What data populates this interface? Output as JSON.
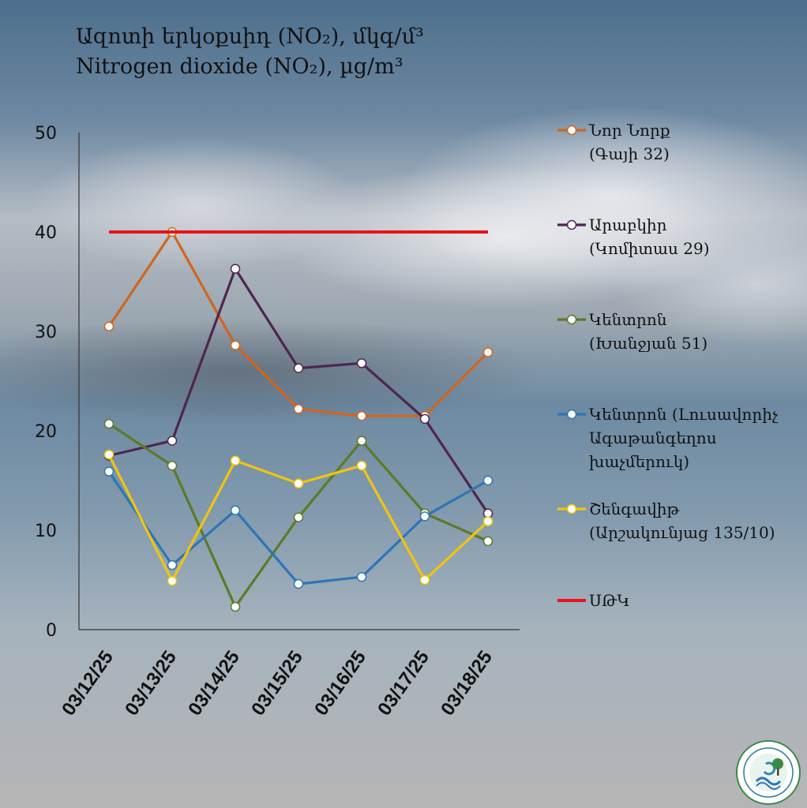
{
  "title": {
    "line1": "Ազոտի  երկօքսիդ (NO₂), մկգ/մ³",
    "line2": "Nitrogen  dioxide (NO₂), µg/m³"
  },
  "chart_data": {
    "type": "line",
    "title": "Ազոտի  երկօքսիդ (NO₂), մկգ/մ³ / Nitrogen  dioxide (NO₂), µg/m³",
    "categories": [
      "03/12/25",
      "03/13/25",
      "03/14/25",
      "03/15/25",
      "03/16/25",
      "03/17/25",
      "03/18/25"
    ],
    "ylim": [
      0,
      50
    ],
    "yticks": [
      "0",
      "10",
      "20",
      "30",
      "40",
      "50"
    ],
    "grid": false,
    "legend_position": "right",
    "series": [
      {
        "name": "Նոր Նորք\n(Գայի 32)",
        "color": "#d0651e",
        "values": [
          30.5,
          40.0,
          28.6,
          22.2,
          21.5,
          21.5,
          27.9
        ]
      },
      {
        "name": "Արաբկիր\n(Կոմիտաս 29)",
        "color": "#4e2650",
        "values": [
          17.5,
          19.0,
          36.3,
          26.3,
          26.8,
          21.2,
          11.7
        ]
      },
      {
        "name": "Կենտրոն\n(Խանջյան 51)",
        "color": "#5d7a26",
        "values": [
          20.7,
          16.5,
          2.3,
          11.3,
          19.0,
          11.7,
          8.9
        ]
      },
      {
        "name": "Կենտրոն (Լուսավորիչ\nԱգաթանգեղոս\nխաչմերուկ)",
        "color": "#2e75b6",
        "values": [
          15.9,
          6.5,
          12.0,
          4.6,
          5.3,
          11.4,
          15.0
        ]
      },
      {
        "name": "Շենգավիթ\n(Արշակունյաց 135/10)",
        "color": "#f2c40f",
        "values": [
          17.6,
          4.9,
          17.0,
          14.7,
          16.5,
          5.0,
          10.9
        ]
      },
      {
        "name": "ՍԹԿ",
        "color": "#e8141a",
        "values": [
          40,
          40,
          40,
          40,
          40,
          40,
          40
        ],
        "markers": false
      }
    ]
  },
  "logo": {
    "icon": "ministry-emblem-icon"
  }
}
